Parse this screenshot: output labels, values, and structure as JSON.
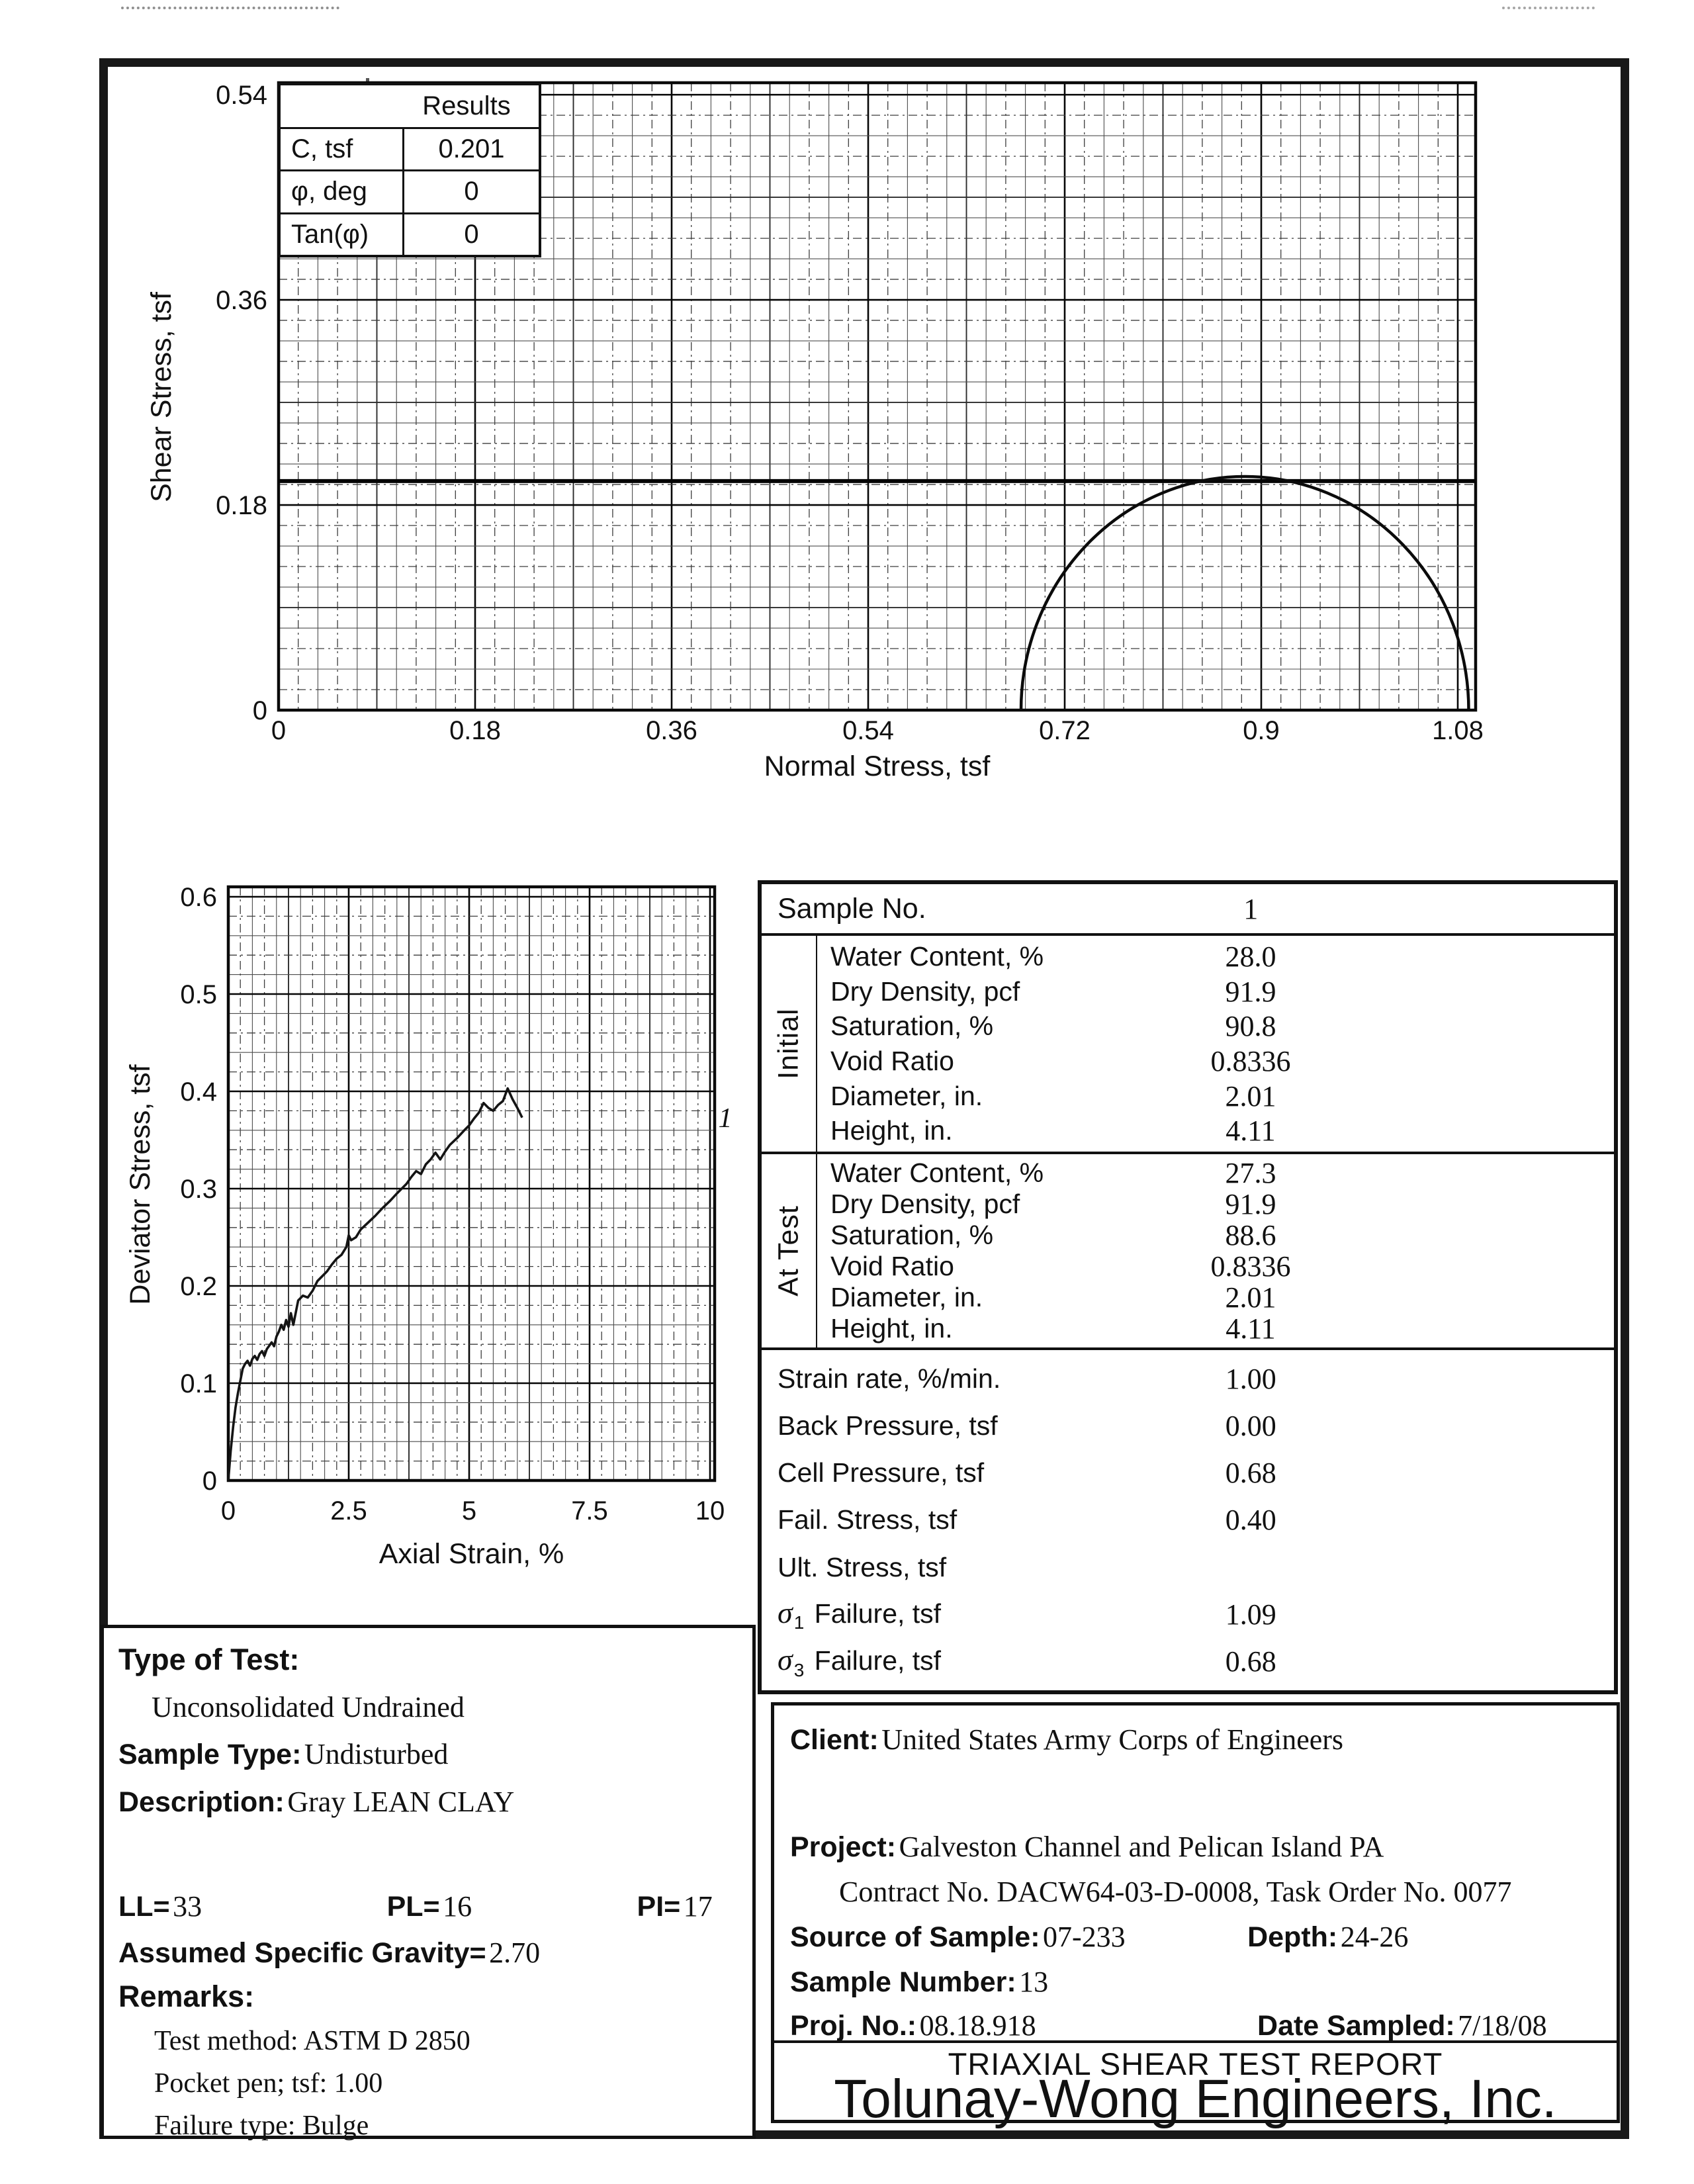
{
  "results_table": {
    "title": "Results",
    "rows": [
      {
        "label": "C, tsf",
        "value": "0.201"
      },
      {
        "label": "φ, deg",
        "value": "0"
      },
      {
        "label": "Tan(φ)",
        "value": "0"
      }
    ]
  },
  "chart_data": [
    {
      "id": "mohr_circle",
      "type": "line",
      "title": "Mohr circle failure envelope plot",
      "xlabel": "Normal Stress, tsf",
      "ylabel": "Shear Stress, tsf",
      "xlim": [
        0,
        1.096
      ],
      "ylim": [
        0,
        0.551
      ],
      "xticks": [
        0,
        0.18,
        0.36,
        0.54,
        0.72,
        0.9,
        1.08
      ],
      "yticks": [
        0,
        0.18,
        0.36,
        0.54
      ],
      "grid": "fine graph paper, minor step 0.018, majors every 0.18",
      "legend_position": "none",
      "failure_envelope_y": 0.201,
      "mohr_circle": {
        "sigma3": 0.68,
        "sigma1": 1.09,
        "center": 0.885,
        "radius": 0.205
      }
    },
    {
      "id": "stress_strain",
      "type": "line",
      "title": "Deviator stress versus axial strain curve",
      "xlabel": "Axial Strain, %",
      "ylabel": "Deviator Stress, tsf",
      "xlim": [
        0,
        10.05
      ],
      "ylim": [
        0,
        0.604
      ],
      "xticks": [
        0,
        2.5,
        5,
        7.5,
        10
      ],
      "yticks": [
        0,
        0.1,
        0.2,
        0.3,
        0.4,
        0.5,
        0.6
      ],
      "grid": "fine graph paper, minor steps 0.25 (x) and 0.02 (y)",
      "legend_position": "none",
      "curve_label": "1",
      "series": [
        {
          "name": "1",
          "points": [
            [
              0,
              0
            ],
            [
              0.05,
              0.03
            ],
            [
              0.1,
              0.055
            ],
            [
              0.15,
              0.075
            ],
            [
              0.2,
              0.09
            ],
            [
              0.3,
              0.115
            ],
            [
              0.35,
              0.12
            ],
            [
              0.4,
              0.123
            ],
            [
              0.45,
              0.118
            ],
            [
              0.5,
              0.125
            ],
            [
              0.55,
              0.128
            ],
            [
              0.6,
              0.124
            ],
            [
              0.65,
              0.13
            ],
            [
              0.7,
              0.133
            ],
            [
              0.75,
              0.128
            ],
            [
              0.8,
              0.135
            ],
            [
              0.9,
              0.142
            ],
            [
              0.95,
              0.138
            ],
            [
              1.0,
              0.148
            ],
            [
              1.05,
              0.153
            ],
            [
              1.1,
              0.16
            ],
            [
              1.15,
              0.155
            ],
            [
              1.2,
              0.165
            ],
            [
              1.25,
              0.158
            ],
            [
              1.3,
              0.172
            ],
            [
              1.35,
              0.16
            ],
            [
              1.45,
              0.185
            ],
            [
              1.55,
              0.19
            ],
            [
              1.65,
              0.188
            ],
            [
              1.75,
              0.195
            ],
            [
              1.85,
              0.205
            ],
            [
              1.95,
              0.21
            ],
            [
              2.05,
              0.215
            ],
            [
              2.15,
              0.222
            ],
            [
              2.25,
              0.228
            ],
            [
              2.35,
              0.232
            ],
            [
              2.45,
              0.24
            ],
            [
              2.5,
              0.252
            ],
            [
              2.55,
              0.247
            ],
            [
              2.65,
              0.25
            ],
            [
              2.75,
              0.258
            ],
            [
              2.9,
              0.265
            ],
            [
              3.05,
              0.272
            ],
            [
              3.2,
              0.28
            ],
            [
              3.35,
              0.287
            ],
            [
              3.5,
              0.295
            ],
            [
              3.6,
              0.3
            ],
            [
              3.7,
              0.305
            ],
            [
              3.8,
              0.312
            ],
            [
              3.9,
              0.318
            ],
            [
              4.0,
              0.315
            ],
            [
              4.1,
              0.325
            ],
            [
              4.2,
              0.33
            ],
            [
              4.3,
              0.337
            ],
            [
              4.4,
              0.33
            ],
            [
              4.5,
              0.338
            ],
            [
              4.6,
              0.345
            ],
            [
              4.75,
              0.352
            ],
            [
              4.9,
              0.36
            ],
            [
              5.0,
              0.365
            ],
            [
              5.1,
              0.372
            ],
            [
              5.2,
              0.378
            ],
            [
              5.3,
              0.388
            ],
            [
              5.4,
              0.383
            ],
            [
              5.5,
              0.38
            ],
            [
              5.6,
              0.386
            ],
            [
              5.7,
              0.39
            ],
            [
              5.8,
              0.403
            ],
            [
              5.9,
              0.392
            ],
            [
              6.0,
              0.383
            ],
            [
              6.1,
              0.373
            ]
          ]
        }
      ]
    }
  ],
  "sample_table": {
    "header_label": "Sample No.",
    "header_value": "1",
    "groups": [
      {
        "name": "Initial",
        "rows": [
          {
            "label": "Water Content, %",
            "value": "28.0"
          },
          {
            "label": "Dry Density, pcf",
            "value": "91.9"
          },
          {
            "label": "Saturation, %",
            "value": "90.8"
          },
          {
            "label": "Void Ratio",
            "value": "0.8336"
          },
          {
            "label": "Diameter, in.",
            "value": "2.01"
          },
          {
            "label": "Height, in.",
            "value": "4.11"
          }
        ]
      },
      {
        "name": "At Test",
        "rows": [
          {
            "label": "Water Content, %",
            "value": "27.3"
          },
          {
            "label": "Dry Density, pcf",
            "value": "91.9"
          },
          {
            "label": "Saturation, %",
            "value": "88.6"
          },
          {
            "label": "Void Ratio",
            "value": "0.8336"
          },
          {
            "label": "Diameter, in.",
            "value": "2.01"
          },
          {
            "label": "Height, in.",
            "value": "4.11"
          }
        ]
      }
    ],
    "rows": [
      {
        "label": "Strain rate, %/min.",
        "value": "1.00"
      },
      {
        "label": "Back Pressure, tsf",
        "value": "0.00"
      },
      {
        "label": "Cell Pressure, tsf",
        "value": "0.68"
      },
      {
        "label": "Fail. Stress, tsf",
        "value": "0.40"
      },
      {
        "label": "Ult. Stress, tsf",
        "value": ""
      }
    ],
    "sigma_rows": [
      {
        "sym": "σ",
        "sub": "1",
        "label": "Failure, tsf",
        "value": "1.09"
      },
      {
        "sym": "σ",
        "sub": "3",
        "label": "Failure, tsf",
        "value": "0.68"
      }
    ]
  },
  "test_info": {
    "type_of_test_label": "Type of Test:",
    "type_of_test": "Unconsolidated Undrained",
    "sample_type_label": "Sample Type:",
    "sample_type": "Undisturbed",
    "description_label": "Description:",
    "description": "Gray LEAN CLAY",
    "ll_label": "LL=",
    "ll": "33",
    "pl_label": "PL=",
    "pl": "16",
    "pi_label": "PI=",
    "pi": "17",
    "gravity_label": "Assumed Specific Gravity=",
    "gravity": "2.70",
    "remarks_label": "Remarks:",
    "remark_1": "Test method: ASTM D 2850",
    "remark_2": "Pocket pen; tsf: 1.00",
    "remark_3": "Failure type: Bulge"
  },
  "project_info": {
    "client_label": "Client:",
    "client": "United States Army Corps of Engineers",
    "project_label": "Project:",
    "project": "Galveston Channel and Pelican Island PA",
    "contract": "Contract No. DACW64-03-D-0008, Task Order No. 0077",
    "source_label": "Source of Sample:",
    "source": "07-233",
    "depth_label": "Depth:",
    "depth": "24-26",
    "sample_number_label": "Sample Number:",
    "sample_number": "13",
    "proj_no_label": "Proj. No.:",
    "proj_no": "08.18.918",
    "date_label": "Date Sampled:",
    "date": "7/18/08",
    "report_title": "TRIAXIAL SHEAR TEST REPORT",
    "company": "Tolunay-Wong Engineers, Inc."
  }
}
